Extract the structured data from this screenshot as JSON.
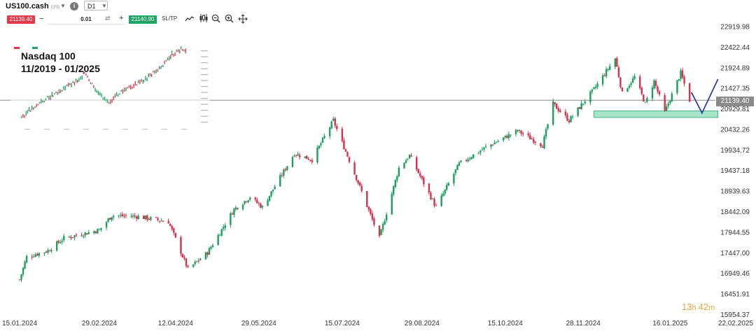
{
  "toolbar": {
    "symbol": "US100.cash",
    "symbol_type": "CFD",
    "timeframe": "D1",
    "sell_price": "21139.40",
    "lot_size": "0.01",
    "buy_price": "21140.90",
    "sltp_label": "SL/TP",
    "info_icon": "i",
    "minus": "−",
    "plus": "+"
  },
  "inset": {
    "title_line1": "Nasdaq 100",
    "title_line2": "11/2019 - 01/2025"
  },
  "timer": {
    "hours": "13",
    "h": "h",
    "minutes": "42",
    "m": "m"
  },
  "colors": {
    "up": "#1a9e5c",
    "down": "#d6304a",
    "zone": "#5ccf9a",
    "arrow": "#2f3fa8",
    "price_line": "#888888"
  },
  "chart_data": {
    "type": "candlestick",
    "title": "",
    "xlabel": "",
    "ylabel": "",
    "y_ticks": [
      22919.98,
      22422.44,
      21924.89,
      21427.35,
      20929.81,
      20432.26,
      19934.72,
      19437.18,
      18939.63,
      18442.09,
      17944.55,
      17447.0,
      16949.46,
      16451.91,
      15954.37
    ],
    "y_tick_labels": [
      "22919.98",
      "22422.44",
      "21924.89",
      "21427.35",
      "20929.81",
      "20432.26",
      "19934.72",
      "19437.18",
      "18939.63",
      "18442.09",
      "17944.55",
      "17447.00",
      "16949.46",
      "16451.91",
      "15954.37"
    ],
    "ylim": [
      15954.37,
      23000
    ],
    "x_tick_labels": [
      "15.01.2024",
      "29.02.2024",
      "12.04.2024",
      "29.05.2024",
      "15.07.2024",
      "29.08.2024",
      "15.10.2024",
      "28.11.2024",
      "16.01.2025",
      "22.02.2025"
    ],
    "current_price": 21139.4,
    "current_price_label": "21139.40",
    "path_anchors": [
      {
        "date": "2024-01-15",
        "price": 16800
      },
      {
        "date": "2024-01-19",
        "price": 17350
      },
      {
        "date": "2024-01-31",
        "price": 17500
      },
      {
        "date": "2024-02-09",
        "price": 17800
      },
      {
        "date": "2024-02-29",
        "price": 18000
      },
      {
        "date": "2024-03-07",
        "price": 18350
      },
      {
        "date": "2024-03-21",
        "price": 18330
      },
      {
        "date": "2024-04-08",
        "price": 18200
      },
      {
        "date": "2024-04-19",
        "price": 17050
      },
      {
        "date": "2024-04-30",
        "price": 17450
      },
      {
        "date": "2024-05-15",
        "price": 18500
      },
      {
        "date": "2024-05-24",
        "price": 18800
      },
      {
        "date": "2024-05-31",
        "price": 18550
      },
      {
        "date": "2024-06-18",
        "price": 19850
      },
      {
        "date": "2024-06-28",
        "price": 19700
      },
      {
        "date": "2024-07-10",
        "price": 20650
      },
      {
        "date": "2024-07-24",
        "price": 19150
      },
      {
        "date": "2024-08-05",
        "price": 17800
      },
      {
        "date": "2024-08-16",
        "price": 19500
      },
      {
        "date": "2024-08-22",
        "price": 19800
      },
      {
        "date": "2024-09-06",
        "price": 18550
      },
      {
        "date": "2024-09-19",
        "price": 19600
      },
      {
        "date": "2024-10-04",
        "price": 20000
      },
      {
        "date": "2024-10-22",
        "price": 20400
      },
      {
        "date": "2024-11-05",
        "price": 20050
      },
      {
        "date": "2024-11-11",
        "price": 21050
      },
      {
        "date": "2024-11-20",
        "price": 20650
      },
      {
        "date": "2024-12-04",
        "price": 21400
      },
      {
        "date": "2024-12-16",
        "price": 22150
      },
      {
        "date": "2024-12-20",
        "price": 21300
      },
      {
        "date": "2024-12-27",
        "price": 21700
      },
      {
        "date": "2025-01-02",
        "price": 21050
      },
      {
        "date": "2025-01-07",
        "price": 21600
      },
      {
        "date": "2025-01-13",
        "price": 20850
      },
      {
        "date": "2025-01-22",
        "price": 21800
      },
      {
        "date": "2025-01-27",
        "price": 21139.4
      }
    ],
    "support_zone": {
      "low": 20720,
      "high": 20880,
      "start": "2024-12-04",
      "end": "2025-02-12"
    },
    "projection": [
      {
        "date": "2025-01-28",
        "price": 21330
      },
      {
        "date": "2025-02-03",
        "price": 20830
      },
      {
        "date": "2025-02-12",
        "price": 21650
      }
    ],
    "x_axis": {
      "start": "2024-01-15",
      "end": "2025-02-22"
    },
    "grid": false,
    "legend": "none"
  }
}
